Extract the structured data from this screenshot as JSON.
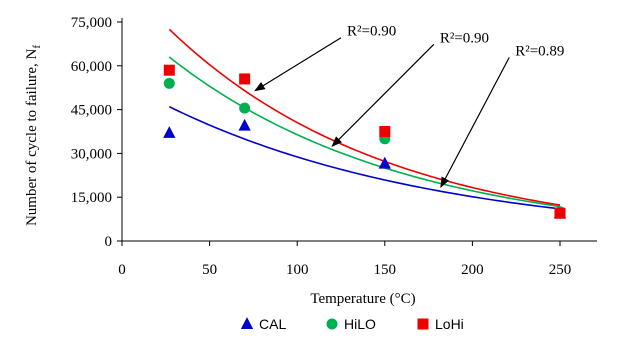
{
  "chart_data": {
    "type": "scatter",
    "xlabel": "Temperature (°C)",
    "ylabel": "Number of cycle to failure, N",
    "ylabel_subscript": "f",
    "xlim": [
      0,
      275
    ],
    "ylim": [
      0,
      75000
    ],
    "x_ticks": [
      0,
      50,
      100,
      150,
      200,
      250
    ],
    "y_ticks": [
      0,
      15000,
      30000,
      45000,
      60000,
      75000
    ],
    "x_tick_labels": [
      "0",
      "50",
      "100",
      "150",
      "200",
      "250"
    ],
    "y_tick_labels": [
      "0",
      "15,000",
      "30,000",
      "45,000",
      "60,000",
      "75,000"
    ],
    "grid": false,
    "legend_placement": "bottom",
    "series": [
      {
        "name": "CAL",
        "marker": "triangle",
        "color": "#0000cc",
        "x": [
          27,
          70,
          150,
          250
        ],
        "y": [
          37000,
          39500,
          26500,
          9500
        ],
        "trend": {
          "x_start": 27,
          "y_start": 46000,
          "x_end": 250,
          "y_end": 11000
        }
      },
      {
        "name": "HiLO",
        "marker": "circle",
        "color": "#00b050",
        "x": [
          27,
          70,
          150,
          250
        ],
        "y": [
          54000,
          45500,
          35000,
          10000
        ],
        "trend": {
          "x_start": 27,
          "y_start": 63000,
          "x_end": 250,
          "y_end": 11800
        }
      },
      {
        "name": "LoHi",
        "marker": "square",
        "color": "#ee0000",
        "x": [
          27,
          70,
          150,
          250
        ],
        "y": [
          58500,
          55500,
          37500,
          9500
        ],
        "trend": {
          "x_start": 27,
          "y_start": 72500,
          "x_end": 250,
          "y_end": 12300
        }
      }
    ],
    "annotations": [
      {
        "text": "R²=0.90",
        "points_to": "LoHi",
        "arrow_from": [
          125,
          3.5
        ],
        "arrow_to": [
          76,
          51500
        ]
      },
      {
        "text": "R²=0.90",
        "points_to": "HiLO",
        "arrow_from": [
          178,
          6.5
        ],
        "arrow_to": [
          120,
          32500
        ]
      },
      {
        "text": "R²=0.89",
        "points_to": "CAL",
        "arrow_from": [
          221,
          12.5
        ],
        "arrow_to": [
          182,
          18500
        ]
      }
    ]
  }
}
